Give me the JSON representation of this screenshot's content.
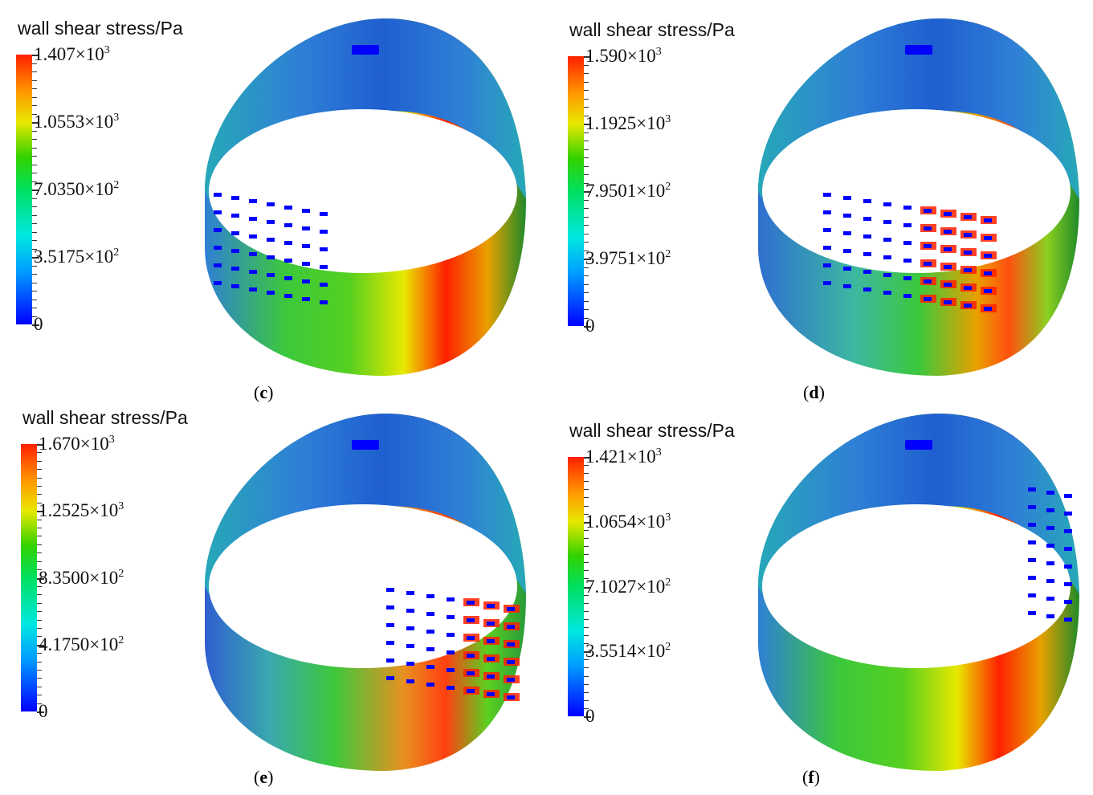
{
  "panels": [
    {
      "id": "c",
      "legend_title": "wall shear stress/Pa",
      "ticks": [
        {
          "mant": "1.407",
          "exp": "3"
        },
        {
          "mant": "1.0553",
          "exp": "3"
        },
        {
          "mant": "7.0350",
          "exp": "2"
        },
        {
          "mant": "3.5175",
          "exp": "2"
        },
        {
          "mant": "0",
          "exp": ""
        }
      ],
      "caption_letter": "c",
      "hot_spot": "band",
      "slots": "left"
    },
    {
      "id": "d",
      "legend_title": "wall shear stress/Pa",
      "ticks": [
        {
          "mant": "1.590",
          "exp": "3"
        },
        {
          "mant": "1.1925",
          "exp": "3"
        },
        {
          "mant": "7.9501",
          "exp": "2"
        },
        {
          "mant": "3.9751",
          "exp": "2"
        },
        {
          "mant": "0",
          "exp": ""
        }
      ],
      "caption_letter": "d",
      "hot_spot": "slots",
      "slots": "middle"
    },
    {
      "id": "e",
      "legend_title": "wall shear stress/Pa",
      "ticks": [
        {
          "mant": "1.670",
          "exp": "3"
        },
        {
          "mant": "1.2525",
          "exp": "3"
        },
        {
          "mant": "8.3500",
          "exp": "2"
        },
        {
          "mant": "4.1750",
          "exp": "2"
        },
        {
          "mant": "0",
          "exp": ""
        }
      ],
      "caption_letter": "e",
      "hot_spot": "slots",
      "slots": "right-middle"
    },
    {
      "id": "f",
      "legend_title": "wall shear stress/Pa",
      "ticks": [
        {
          "mant": "1.421",
          "exp": "3"
        },
        {
          "mant": "1.0654",
          "exp": "3"
        },
        {
          "mant": "7.1027",
          "exp": "2"
        },
        {
          "mant": "3.5514",
          "exp": "2"
        },
        {
          "mant": "0",
          "exp": ""
        }
      ],
      "caption_letter": "f",
      "hot_spot": "band",
      "slots": "far-right"
    }
  ],
  "colors": {
    "low": "#0000ff",
    "mid_low": "#00c8ff",
    "mid": "#00d040",
    "mid_high": "#e8e800",
    "high": "#ff2000",
    "shell_blue": "#2f7fd6",
    "shell_teal": "#27a8b8",
    "shell_green": "#3cc83c"
  }
}
